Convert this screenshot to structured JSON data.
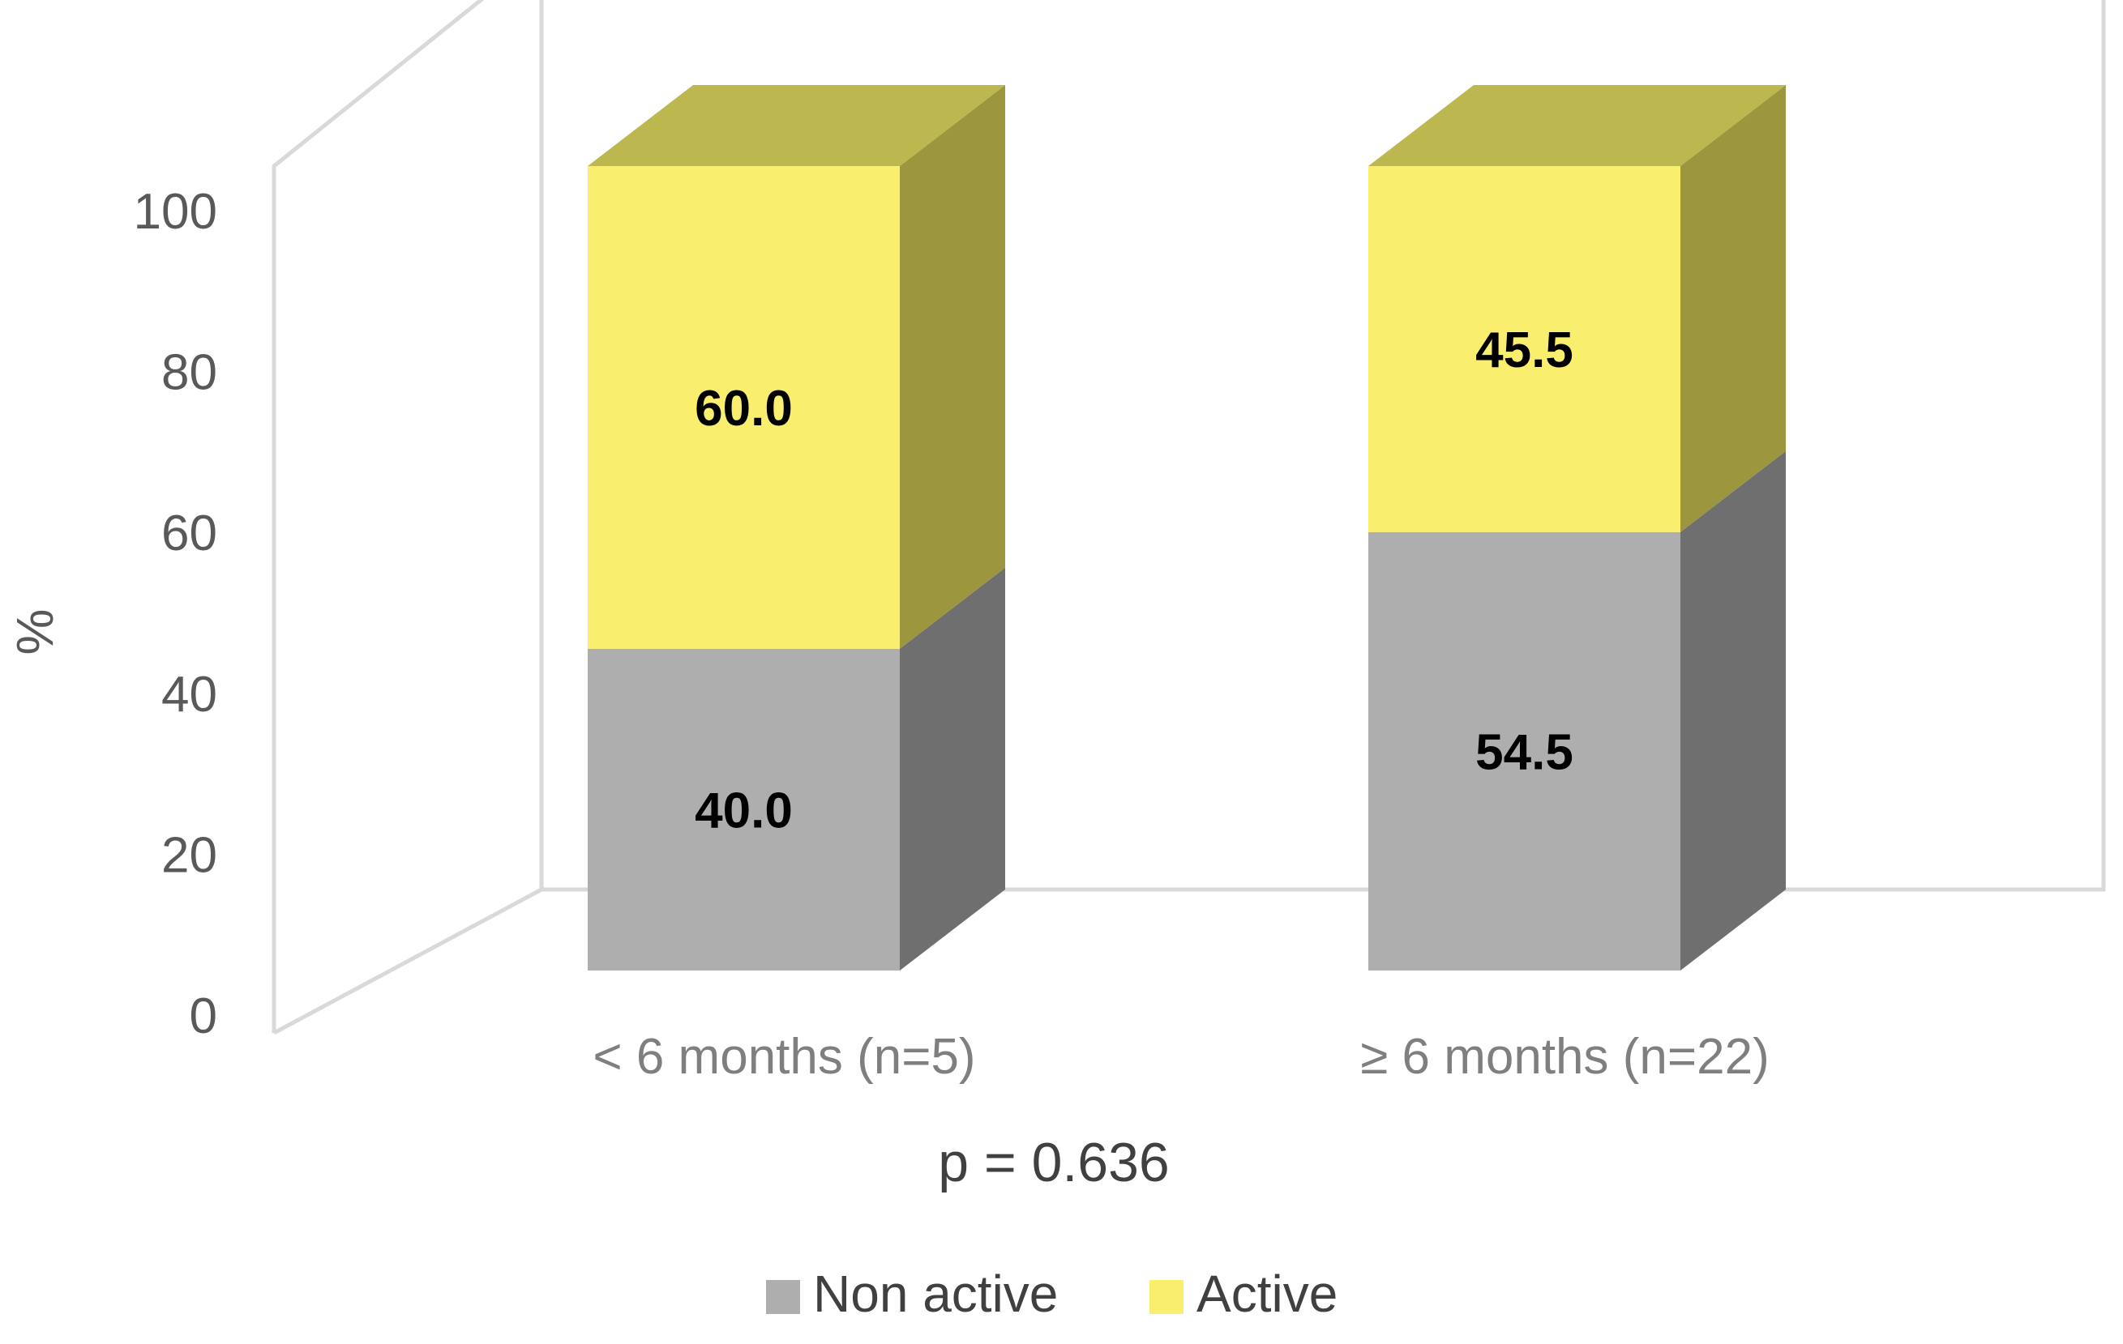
{
  "chart_data": {
    "type": "bar",
    "stacked": true,
    "three_d": true,
    "categories": [
      "< 6 months (n=5)",
      "≥ 6 months (n=22)"
    ],
    "series": [
      {
        "name": "Non active",
        "values": [
          40.0,
          54.5
        ],
        "labels": [
          "40.0",
          "54.5"
        ],
        "color": "#aeaeae",
        "side_color": "#6f6f6f",
        "top_color": "#8f8f8f"
      },
      {
        "name": "Active",
        "values": [
          60.0,
          45.5
        ],
        "labels": [
          "60.0",
          "45.5"
        ],
        "color": "#f9ee6e",
        "side_color": "#9c963f",
        "top_color": "#bdb750"
      }
    ],
    "ylabel": "%",
    "ylim": [
      0,
      100
    ],
    "yticks": [
      "0",
      "20",
      "40",
      "60",
      "80",
      "100"
    ],
    "ytick_values": [
      0,
      20,
      40,
      60,
      80,
      100
    ],
    "annotation": "p = 0.636",
    "grid": false,
    "legend_position": "bottom",
    "wall_color": "#d9d9d9"
  }
}
